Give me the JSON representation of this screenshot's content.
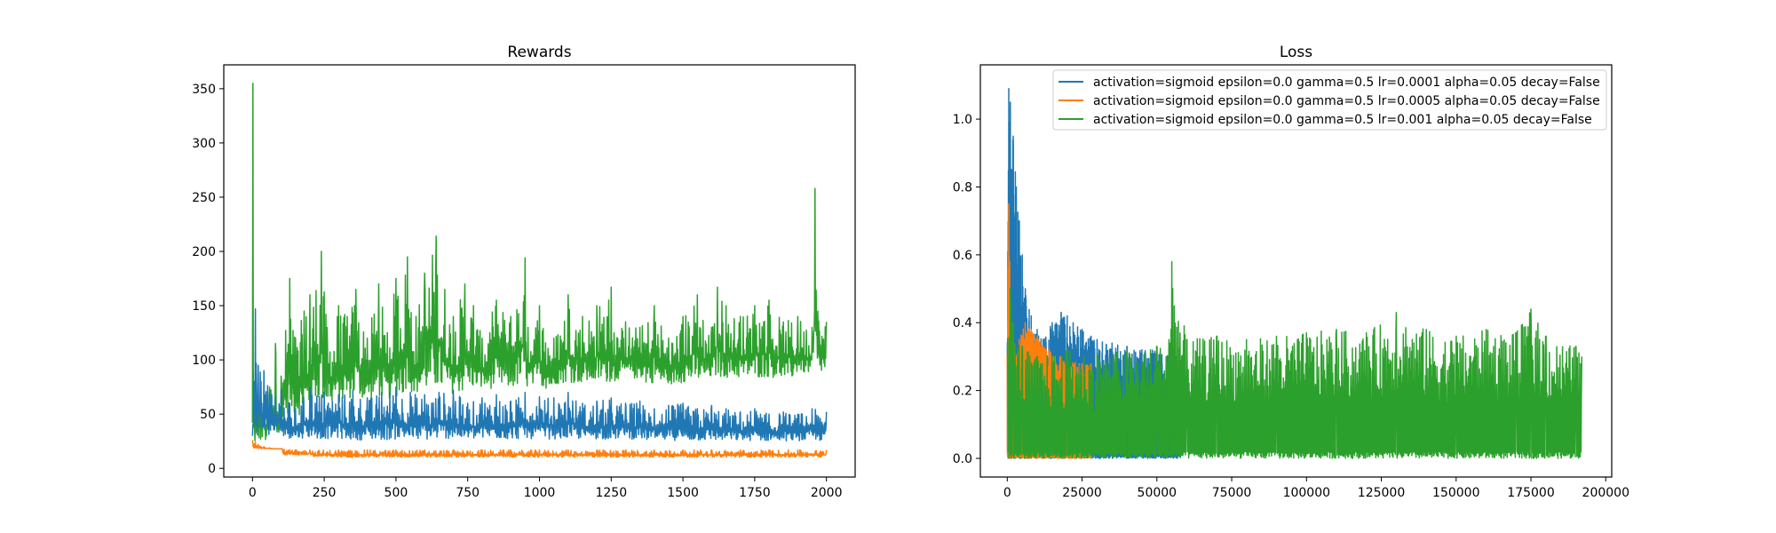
{
  "chart_data": [
    {
      "type": "line",
      "title": "Rewards",
      "xlabel": "",
      "ylabel": "",
      "xlim": [
        -100,
        2100
      ],
      "ylim": [
        -8,
        372
      ],
      "xticks": [
        0,
        250,
        500,
        750,
        1000,
        1250,
        1500,
        1750,
        2000
      ],
      "xtick_labels": [
        "0",
        "250",
        "500",
        "750",
        "1000",
        "1250",
        "1500",
        "1750",
        "2000"
      ],
      "yticks": [
        0,
        50,
        100,
        150,
        200,
        250,
        300,
        350
      ],
      "ytick_labels": [
        "0",
        "50",
        "100",
        "150",
        "200",
        "250",
        "300",
        "350"
      ],
      "grid": false,
      "series": [
        {
          "color": "#2ca02c",
          "x": [
            0,
            1,
            3,
            5,
            10,
            20,
            30,
            40,
            60,
            80,
            100,
            130,
            150,
            180,
            200,
            240,
            260,
            300,
            330,
            360,
            400,
            440,
            470,
            500,
            540,
            570,
            600,
            640,
            670,
            700,
            740,
            770,
            800,
            850,
            900,
            950,
            960,
            1000,
            1050,
            1100,
            1150,
            1200,
            1250,
            1260,
            1300,
            1350,
            1400,
            1450,
            1500,
            1550,
            1600,
            1620,
            1650,
            1700,
            1750,
            1800,
            1850,
            1900,
            1950,
            1960,
            1970,
            2000
          ],
          "y": [
            42,
            355,
            90,
            45,
            55,
            70,
            80,
            60,
            75,
            115,
            85,
            175,
            120,
            145,
            160,
            200,
            130,
            150,
            140,
            165,
            120,
            170,
            125,
            175,
            195,
            140,
            180,
            214,
            165,
            140,
            170,
            150,
            120,
            155,
            140,
            194,
            130,
            150,
            120,
            160,
            140,
            150,
            167,
            125,
            135,
            130,
            150,
            120,
            140,
            160,
            130,
            167,
            150,
            140,
            150,
            155,
            135,
            140,
            130,
            258,
            145,
            135
          ],
          "band": [
            22,
            45,
            55,
            60,
            60,
            65,
            65,
            70,
            70,
            70,
            75,
            75,
            80,
            75,
            75,
            80,
            80,
            80,
            85,
            85
          ]
        },
        {
          "color": "#1f77b4",
          "x": [
            0,
            5,
            10,
            15,
            20,
            40,
            60,
            80,
            100,
            130,
            150,
            200,
            250,
            300,
            350,
            400,
            450,
            500,
            550,
            600,
            650,
            700,
            750,
            800,
            850,
            900,
            950,
            1000,
            1050,
            1100,
            1150,
            1200,
            1250,
            1300,
            1350,
            1400,
            1450,
            1500,
            1550,
            1600,
            1650,
            1700,
            1750,
            1800,
            1850,
            1900,
            1950,
            2000
          ],
          "y": [
            30,
            80,
            147,
            60,
            95,
            90,
            70,
            65,
            72,
            60,
            55,
            75,
            70,
            68,
            72,
            65,
            70,
            75,
            70,
            68,
            70,
            72,
            60,
            65,
            68,
            62,
            70,
            66,
            65,
            70,
            60,
            62,
            65,
            60,
            62,
            55,
            58,
            60,
            55,
            58,
            55,
            52,
            55,
            50,
            52,
            50,
            55,
            52
          ],
          "band": [
            28,
            26,
            25,
            24,
            24,
            24,
            25,
            25,
            25,
            25,
            25,
            25,
            25,
            24,
            24,
            24,
            24,
            24,
            24,
            24
          ]
        },
        {
          "color": "#ff7f0e",
          "x": [
            0,
            10,
            20,
            40,
            60,
            80,
            100,
            150,
            200,
            300,
            400,
            500,
            600,
            700,
            800,
            900,
            1000,
            1100,
            1200,
            1300,
            1400,
            1500,
            1600,
            1700,
            1800,
            1900,
            2000
          ],
          "y": [
            26,
            24,
            22,
            20,
            19,
            18,
            18,
            17,
            17,
            17,
            17,
            17,
            17,
            17,
            17,
            17,
            17,
            17,
            17,
            17,
            17,
            17,
            17,
            17,
            17,
            17,
            17
          ],
          "band": [
            18,
            12,
            10,
            10,
            10,
            10,
            10,
            10,
            10,
            10,
            10,
            10,
            10,
            10,
            10,
            10,
            10,
            10,
            10,
            10
          ]
        }
      ]
    },
    {
      "type": "line",
      "title": "Loss",
      "xlabel": "",
      "ylabel": "",
      "xlim": [
        -9000,
        202000
      ],
      "ylim": [
        -0.055,
        1.16
      ],
      "xticks": [
        0,
        25000,
        50000,
        75000,
        100000,
        125000,
        150000,
        175000,
        200000
      ],
      "xtick_labels": [
        "0",
        "25000",
        "50000",
        "75000",
        "100000",
        "125000",
        "150000",
        "175000",
        "200000"
      ],
      "yticks": [
        0.0,
        0.2,
        0.4,
        0.6,
        0.8,
        1.0
      ],
      "ytick_labels": [
        "0.0",
        "0.2",
        "0.4",
        "0.6",
        "0.8",
        "1.0"
      ],
      "grid": false,
      "legend": {
        "position": "upper right",
        "entries": [
          {
            "label": "activation=sigmoid epsilon=0.0 gamma=0.5 lr=0.0001 alpha=0.05 decay=False",
            "color": "#1f77b4"
          },
          {
            "label": "activation=sigmoid epsilon=0.0 gamma=0.5 lr=0.0005 alpha=0.05 decay=False",
            "color": "#ff7f0e"
          },
          {
            "label": "activation=sigmoid epsilon=0.0 gamma=0.5 lr=0.001 alpha=0.05 decay=False",
            "color": "#2ca02c"
          }
        ]
      },
      "series": [
        {
          "name": "activation=sigmoid epsilon=0.0 gamma=0.5 lr=0.0001 alpha=0.05 decay=False",
          "color": "#1f77b4",
          "x": [
            0,
            500,
            1000,
            2000,
            3000,
            4000,
            5000,
            6000,
            8000,
            10000,
            12000,
            15000,
            18000,
            20000,
            22000,
            25000,
            28000,
            30000,
            35000,
            40000,
            45000,
            50000,
            55000,
            58000
          ],
          "y": [
            0.3,
            1.09,
            1.05,
            0.95,
            0.8,
            0.7,
            0.6,
            0.5,
            0.42,
            0.38,
            0.35,
            0.4,
            0.43,
            0.42,
            0.4,
            0.38,
            0.36,
            0.35,
            0.34,
            0.33,
            0.32,
            0.32,
            0.3,
            0.29
          ]
        },
        {
          "name": "activation=sigmoid epsilon=0.0 gamma=0.5 lr=0.0005 alpha=0.05 decay=False",
          "color": "#ff7f0e",
          "x": [
            0,
            500,
            1000,
            2000,
            3000,
            4000,
            6000,
            8000,
            10000,
            12000,
            14000,
            16000,
            18000,
            20000,
            25000,
            28000
          ],
          "y": [
            0.3,
            0.75,
            0.45,
            0.35,
            0.3,
            0.35,
            0.4,
            0.38,
            0.36,
            0.33,
            0.32,
            0.3,
            0.3,
            0.29,
            0.28,
            0.28
          ]
        },
        {
          "name": "activation=sigmoid epsilon=0.0 gamma=0.5 lr=0.001 alpha=0.05 decay=False",
          "color": "#2ca02c",
          "x": [
            0,
            1000,
            2000,
            5000,
            10000,
            20000,
            30000,
            40000,
            50000,
            54000,
            55000,
            60000,
            70000,
            80000,
            90000,
            100000,
            110000,
            120000,
            130000,
            140000,
            150000,
            160000,
            170000,
            175000,
            180000,
            190000,
            192000
          ],
          "y": [
            0.35,
            0.5,
            0.4,
            0.33,
            0.3,
            0.32,
            0.31,
            0.32,
            0.33,
            0.35,
            0.58,
            0.35,
            0.36,
            0.35,
            0.36,
            0.37,
            0.38,
            0.37,
            0.43,
            0.38,
            0.36,
            0.38,
            0.37,
            0.44,
            0.36,
            0.33,
            0.3
          ]
        }
      ]
    }
  ]
}
